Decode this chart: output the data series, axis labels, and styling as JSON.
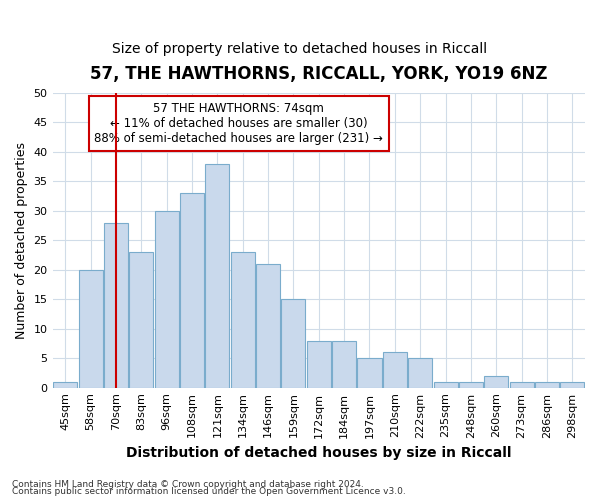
{
  "title": "57, THE HAWTHORNS, RICCALL, YORK, YO19 6NZ",
  "subtitle": "Size of property relative to detached houses in Riccall",
  "xlabel": "Distribution of detached houses by size in Riccall",
  "ylabel": "Number of detached properties",
  "bins": [
    "45sqm",
    "58sqm",
    "70sqm",
    "83sqm",
    "96sqm",
    "108sqm",
    "121sqm",
    "134sqm",
    "146sqm",
    "159sqm",
    "172sqm",
    "184sqm",
    "197sqm",
    "210sqm",
    "222sqm",
    "235sqm",
    "248sqm",
    "260sqm",
    "273sqm",
    "286sqm",
    "298sqm"
  ],
  "values": [
    1,
    20,
    28,
    23,
    30,
    33,
    38,
    23,
    21,
    15,
    8,
    8,
    5,
    6,
    5,
    1,
    1,
    2,
    1,
    1,
    1
  ],
  "bar_color": "#c9d9ec",
  "bar_edge_color": "#7aaccc",
  "vline_x_index": 2,
  "vline_color": "#cc0000",
  "annotation_line1": "57 THE HAWTHORNS: 74sqm",
  "annotation_line2": "← 11% of detached houses are smaller (30)",
  "annotation_line3": "88% of semi-detached houses are larger (231) →",
  "annotation_box_color": "white",
  "annotation_box_edge_color": "#cc0000",
  "ylim": [
    0,
    50
  ],
  "yticks": [
    0,
    5,
    10,
    15,
    20,
    25,
    30,
    35,
    40,
    45,
    50
  ],
  "footer1": "Contains HM Land Registry data © Crown copyright and database right 2024.",
  "footer2": "Contains public sector information licensed under the Open Government Licence v3.0.",
  "background_color": "#ffffff",
  "plot_background_color": "#ffffff",
  "grid_color": "#d0dce8",
  "title_fontsize": 12,
  "subtitle_fontsize": 10,
  "tick_fontsize": 8,
  "ylabel_fontsize": 9,
  "xlabel_fontsize": 10
}
